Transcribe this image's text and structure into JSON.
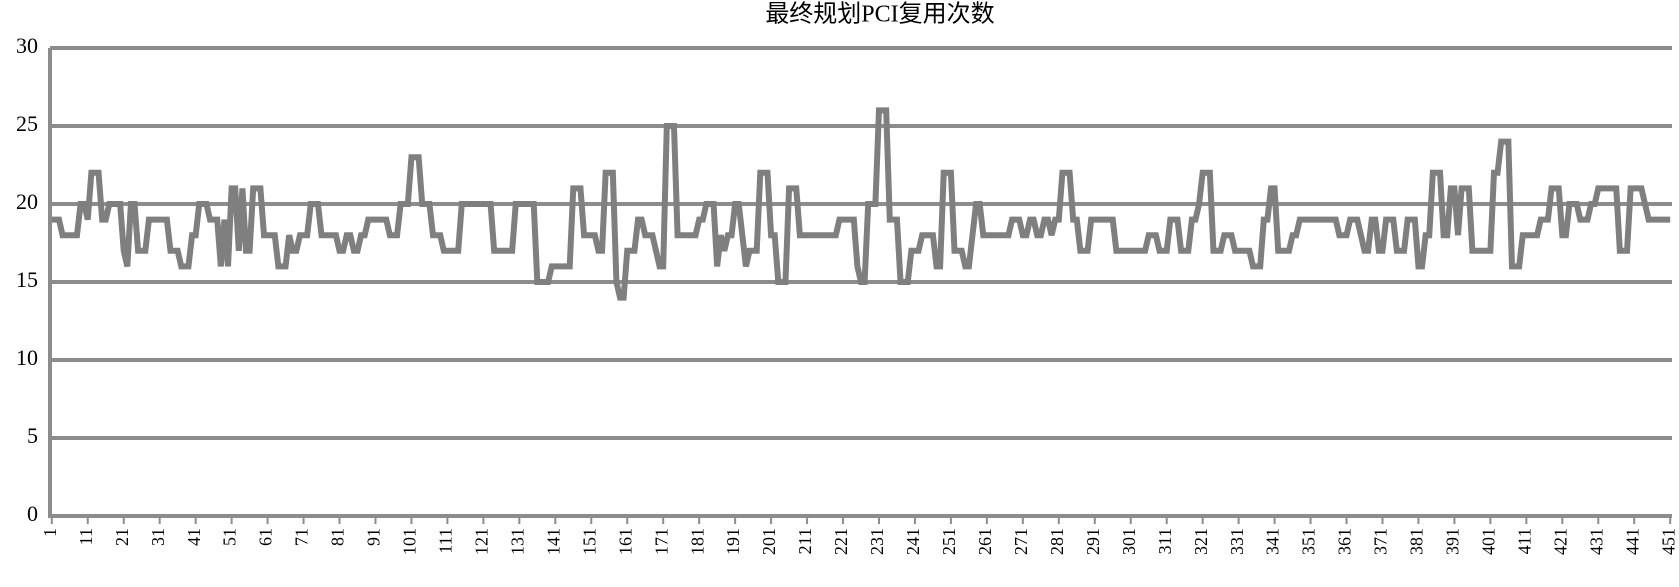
{
  "chart_data": {
    "type": "line",
    "title": "最终规划PCI复用次数",
    "categories": [
      "1",
      null,
      null,
      null,
      null,
      null,
      null,
      null,
      null,
      null,
      "11",
      null,
      null,
      null,
      null,
      null,
      null,
      null,
      null,
      null,
      "21",
      null,
      null,
      null,
      null,
      null,
      null,
      null,
      null,
      null,
      "31",
      null,
      null,
      null,
      null,
      null,
      null,
      null,
      null,
      null,
      "41",
      null,
      null,
      null,
      null,
      null,
      null,
      null,
      null,
      null,
      "51",
      null,
      null,
      null,
      null,
      null,
      null,
      null,
      null,
      null,
      "61",
      null,
      null,
      null,
      null,
      null,
      null,
      null,
      null,
      null,
      "71",
      null,
      null,
      null,
      null,
      null,
      null,
      null,
      null,
      null,
      "81",
      null,
      null,
      null,
      null,
      null,
      null,
      null,
      null,
      null,
      "91",
      null,
      null,
      null,
      null,
      null,
      null,
      null,
      null,
      null,
      "101",
      null,
      null,
      null,
      null,
      null,
      null,
      null,
      null,
      null,
      "111",
      null,
      null,
      null,
      null,
      null,
      null,
      null,
      null,
      null,
      "121",
      null,
      null,
      null,
      null,
      null,
      null,
      null,
      null,
      null,
      "131",
      null,
      null,
      null,
      null,
      null,
      null,
      null,
      null,
      null,
      "141",
      null,
      null,
      null,
      null,
      null,
      null,
      null,
      null,
      null,
      "151",
      null,
      null,
      null,
      null,
      null,
      null,
      null,
      null,
      null,
      "161",
      null,
      null,
      null,
      null,
      null,
      null,
      null,
      null,
      null,
      "171",
      null,
      null,
      null,
      null,
      null,
      null,
      null,
      null,
      null,
      "181",
      null,
      null,
      null,
      null,
      null,
      null,
      null,
      null,
      null,
      "191",
      null,
      null,
      null,
      null,
      null,
      null,
      null,
      null,
      null,
      "201",
      null,
      null,
      null,
      null,
      null,
      null,
      null,
      null,
      null,
      "211",
      null,
      null,
      null,
      null,
      null,
      null,
      null,
      null,
      null,
      "221",
      null,
      null,
      null,
      null,
      null,
      null,
      null,
      null,
      null,
      "231",
      null,
      null,
      null,
      null,
      null,
      null,
      null,
      null,
      null,
      "241",
      null,
      null,
      null,
      null,
      null,
      null,
      null,
      null,
      null,
      "251",
      null,
      null,
      null,
      null,
      null,
      null,
      null,
      null,
      null,
      "261",
      null,
      null,
      null,
      null,
      null,
      null,
      null,
      null,
      null,
      "271",
      null,
      null,
      null,
      null,
      null,
      null,
      null,
      null,
      null,
      "281",
      null,
      null,
      null,
      null,
      null,
      null,
      null,
      null,
      null,
      "291",
      null,
      null,
      null,
      null,
      null,
      null,
      null,
      null,
      null,
      "301",
      null,
      null,
      null,
      null,
      null,
      null,
      null,
      null,
      null,
      "311",
      null,
      null,
      null,
      null,
      null,
      null,
      null,
      null,
      null,
      "321",
      null,
      null,
      null,
      null,
      null,
      null,
      null,
      null,
      null,
      "331",
      null,
      null,
      null,
      null,
      null,
      null,
      null,
      null,
      null,
      "341",
      null,
      null,
      null,
      null,
      null,
      null,
      null,
      null,
      null,
      "351",
      null,
      null,
      null,
      null,
      null,
      null,
      null,
      null,
      null,
      "361",
      null,
      null,
      null,
      null,
      null,
      null,
      null,
      null,
      null,
      "371",
      null,
      null,
      null,
      null,
      null,
      null,
      null,
      null,
      null,
      "381",
      null,
      null,
      null,
      null,
      null,
      null,
      null,
      null,
      null,
      "391",
      null,
      null,
      null,
      null,
      null,
      null,
      null,
      null,
      null,
      "401",
      null,
      null,
      null,
      null,
      null,
      null,
      null,
      null,
      null,
      "411",
      null,
      null,
      null,
      null,
      null,
      null,
      null,
      null,
      null,
      "421",
      null,
      null,
      null,
      null,
      null,
      null,
      null,
      null,
      null,
      "431",
      null,
      null,
      null,
      null,
      null,
      null,
      null,
      null,
      null,
      "441",
      null,
      null,
      null,
      null,
      null,
      null,
      null,
      null,
      null,
      "451"
    ],
    "values": [
      19,
      19,
      19,
      18,
      18,
      18,
      18,
      18,
      20,
      20,
      19,
      22,
      22,
      22,
      19,
      19,
      20,
      20,
      20,
      20,
      17,
      16,
      20,
      20,
      17,
      17,
      17,
      19,
      19,
      19,
      19,
      19,
      19,
      17,
      17,
      17,
      16,
      16,
      16,
      18,
      18,
      20,
      20,
      20,
      19,
      19,
      19,
      16,
      19,
      16,
      21,
      21,
      17,
      21,
      17,
      17,
      21,
      21,
      21,
      18,
      18,
      18,
      18,
      16,
      16,
      16,
      18,
      17,
      17,
      18,
      18,
      18,
      20,
      20,
      20,
      18,
      18,
      18,
      18,
      18,
      17,
      17,
      18,
      18,
      17,
      17,
      18,
      18,
      19,
      19,
      19,
      19,
      19,
      19,
      18,
      18,
      18,
      20,
      20,
      20,
      23,
      23,
      23,
      20,
      20,
      20,
      18,
      18,
      18,
      17,
      17,
      17,
      17,
      17,
      20,
      20,
      20,
      20,
      20,
      20,
      20,
      20,
      20,
      17,
      17,
      17,
      17,
      17,
      17,
      20,
      20,
      20,
      20,
      20,
      20,
      15,
      15,
      15,
      15,
      16,
      16,
      16,
      16,
      16,
      16,
      21,
      21,
      21,
      18,
      18,
      18,
      18,
      17,
      17,
      22,
      22,
      22,
      15,
      14,
      14,
      17,
      17,
      17,
      19,
      19,
      18,
      18,
      18,
      17,
      16,
      16,
      25,
      25,
      25,
      18,
      18,
      18,
      18,
      18,
      18,
      19,
      19,
      20,
      20,
      20,
      16,
      18,
      17,
      18,
      18,
      20,
      20,
      18,
      16,
      17,
      17,
      17,
      22,
      22,
      22,
      18,
      18,
      15,
      15,
      15,
      21,
      21,
      21,
      18,
      18,
      18,
      18,
      18,
      18,
      18,
      18,
      18,
      18,
      18,
      19,
      19,
      19,
      19,
      19,
      16,
      15,
      15,
      20,
      20,
      20,
      26,
      26,
      26,
      19,
      19,
      19,
      15,
      15,
      15,
      17,
      17,
      17,
      18,
      18,
      18,
      18,
      16,
      16,
      22,
      22,
      22,
      17,
      17,
      17,
      16,
      16,
      18,
      20,
      20,
      18,
      18,
      18,
      18,
      18,
      18,
      18,
      18,
      19,
      19,
      19,
      18,
      18,
      19,
      19,
      18,
      18,
      19,
      19,
      18,
      19,
      19,
      22,
      22,
      22,
      19,
      19,
      17,
      17,
      17,
      19,
      19,
      19,
      19,
      19,
      19,
      19,
      17,
      17,
      17,
      17,
      17,
      17,
      17,
      17,
      17,
      18,
      18,
      18,
      17,
      17,
      17,
      19,
      19,
      19,
      17,
      17,
      17,
      19,
      19,
      20,
      22,
      22,
      22,
      17,
      17,
      17,
      18,
      18,
      18,
      17,
      17,
      17,
      17,
      17,
      16,
      16,
      16,
      19,
      19,
      21,
      21,
      17,
      17,
      17,
      17,
      18,
      18,
      19,
      19,
      19,
      19,
      19,
      19,
      19,
      19,
      19,
      19,
      19,
      18,
      18,
      18,
      19,
      19,
      19,
      18,
      17,
      17,
      19,
      19,
      17,
      17,
      19,
      19,
      19,
      17,
      17,
      17,
      19,
      19,
      19,
      16,
      16,
      18,
      18,
      22,
      22,
      22,
      18,
      18,
      21,
      21,
      18,
      21,
      21,
      21,
      17,
      17,
      17,
      17,
      17,
      17,
      22,
      22,
      24,
      24,
      24,
      16,
      16,
      16,
      18,
      18,
      18,
      18,
      18,
      19,
      19,
      19,
      21,
      21,
      21,
      18,
      18,
      20,
      20,
      20,
      19,
      19,
      19,
      20,
      20,
      21,
      21,
      21,
      21,
      21,
      21,
      17,
      17,
      17,
      21,
      21,
      21,
      21,
      20,
      19,
      19,
      19,
      19,
      19,
      19,
      19
    ],
    "color": "#7f7f7f",
    "ylim": [
      0,
      30
    ],
    "yticks": [
      0,
      5,
      10,
      15,
      20,
      25,
      30
    ],
    "grid": true
  }
}
